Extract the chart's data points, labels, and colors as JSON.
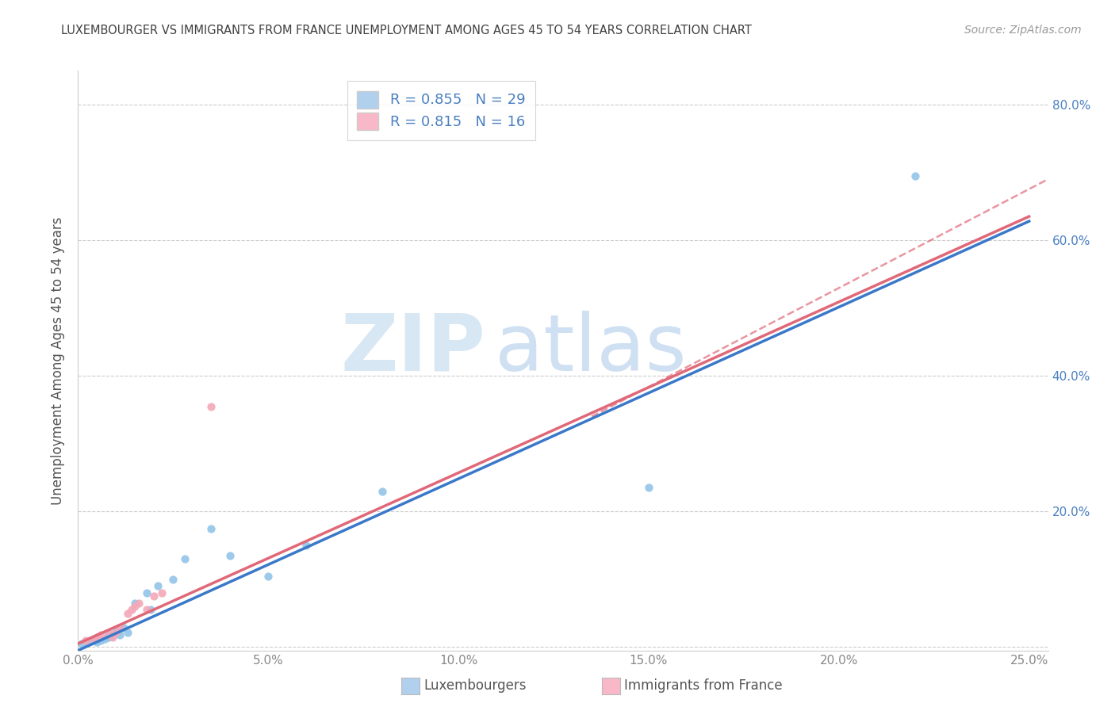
{
  "title": "LUXEMBOURGER VS IMMIGRANTS FROM FRANCE UNEMPLOYMENT AMONG AGES 45 TO 54 YEARS CORRELATION CHART",
  "source": "Source: ZipAtlas.com",
  "ylabel": "Unemployment Among Ages 45 to 54 years",
  "xlim": [
    0.0,
    0.255
  ],
  "ylim": [
    -0.005,
    0.85
  ],
  "xticks": [
    0.0,
    0.05,
    0.1,
    0.15,
    0.2,
    0.25
  ],
  "yticks": [
    0.0,
    0.2,
    0.4,
    0.6,
    0.8
  ],
  "xtick_labels": [
    "0.0%",
    "5.0%",
    "10.0%",
    "15.0%",
    "20.0%",
    "25.0%"
  ],
  "ytick_labels_right": [
    "",
    "20.0%",
    "40.0%",
    "60.0%",
    "80.0%"
  ],
  "blue_scatter_color": "#92c5e8",
  "pink_scatter_color": "#f4a8b8",
  "blue_line_color": "#3a78c9",
  "pink_line_color": "#e06878",
  "legend_box_blue": "#b0d0ee",
  "legend_box_pink": "#f8b8c8",
  "lux_R": 0.855,
  "lux_N": 29,
  "imm_R": 0.815,
  "imm_N": 16,
  "legend_text_color": "#4a7fc1",
  "watermark_zip": "ZIP",
  "watermark_atlas": "atlas",
  "watermark_zip_color": "#c8ddf0",
  "watermark_atlas_color": "#a8c8e8",
  "bg_color": "#ffffff",
  "grid_color": "#cccccc",
  "title_color": "#404040",
  "ylabel_color": "#555555",
  "tick_color": "#888888",
  "lux_x": [
    0.001,
    0.002,
    0.003,
    0.004,
    0.005,
    0.005,
    0.006,
    0.007,
    0.008,
    0.008,
    0.009,
    0.01,
    0.01,
    0.011,
    0.012,
    0.013,
    0.015,
    0.018,
    0.019,
    0.021,
    0.025,
    0.028,
    0.035,
    0.04,
    0.05,
    0.06,
    0.08,
    0.15,
    0.22
  ],
  "lux_y": [
    0.005,
    0.008,
    0.01,
    0.012,
    0.008,
    0.015,
    0.01,
    0.012,
    0.015,
    0.02,
    0.018,
    0.022,
    0.025,
    0.018,
    0.028,
    0.022,
    0.065,
    0.08,
    0.055,
    0.09,
    0.1,
    0.13,
    0.175,
    0.135,
    0.105,
    0.15,
    0.23,
    0.235,
    0.695
  ],
  "imm_x": [
    0.002,
    0.004,
    0.005,
    0.006,
    0.008,
    0.009,
    0.01,
    0.011,
    0.013,
    0.014,
    0.015,
    0.016,
    0.018,
    0.02,
    0.022,
    0.035
  ],
  "imm_y": [
    0.01,
    0.012,
    0.015,
    0.018,
    0.02,
    0.015,
    0.022,
    0.028,
    0.05,
    0.055,
    0.06,
    0.065,
    0.055,
    0.075,
    0.08,
    0.355
  ],
  "blue_line_x0": 0.0,
  "blue_line_x1": 0.25,
  "blue_line_y0": -0.005,
  "blue_line_y1": 0.628,
  "pink_line_x0": 0.0,
  "pink_line_x1": 0.25,
  "pink_line_y0": 0.005,
  "pink_line_y1": 0.635,
  "dash_line_x0": 0.135,
  "dash_line_x1": 0.255,
  "dash_line_y0": 0.34,
  "dash_line_y1": 0.69
}
